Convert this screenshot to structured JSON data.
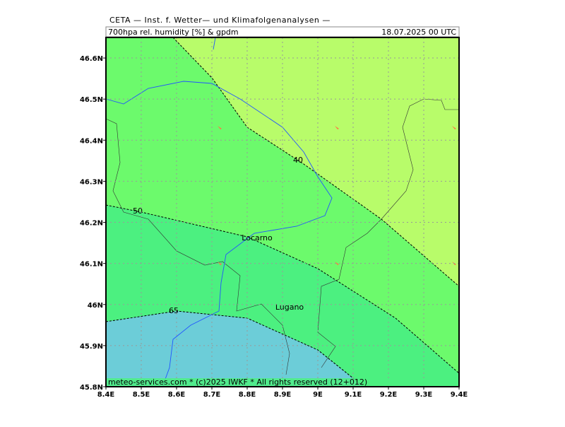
{
  "header": {
    "institution": "CETA — Inst. f. Wetter— und Klimafolgenanalysen —",
    "product": "700hpa rel. humidity [%] & gpdm",
    "valid_time": "18.07.2025 00 UTC"
  },
  "map": {
    "xlim": [
      8.4,
      9.4
    ],
    "ylim": [
      45.8,
      46.65
    ],
    "xticks": [
      {
        "value": 8.4,
        "label": "8.4E"
      },
      {
        "value": 8.5,
        "label": "8.5E"
      },
      {
        "value": 8.6,
        "label": "8.6E"
      },
      {
        "value": 8.7,
        "label": "8.7E"
      },
      {
        "value": 8.8,
        "label": "8.8E"
      },
      {
        "value": 8.9,
        "label": "8.9E"
      },
      {
        "value": 9,
        "label": "9E"
      },
      {
        "value": 9.1,
        "label": "9.1E"
      },
      {
        "value": 9.2,
        "label": "9.2E"
      },
      {
        "value": 9.3,
        "label": "9.3E"
      },
      {
        "value": 9.4,
        "label": "9.4E"
      }
    ],
    "yticks": [
      {
        "value": 45.8,
        "label": "45.8N"
      },
      {
        "value": 45.9,
        "label": "45.9N"
      },
      {
        "value": 46,
        "label": "46N"
      },
      {
        "value": 46.1,
        "label": "46.1N"
      },
      {
        "value": 46.2,
        "label": "46.2N"
      },
      {
        "value": 46.3,
        "label": "46.3N"
      },
      {
        "value": 46.4,
        "label": "46.4N"
      },
      {
        "value": 46.5,
        "label": "46.5N"
      },
      {
        "value": 46.6,
        "label": "46.6N"
      }
    ],
    "grid": true,
    "contour_labels": [
      40,
      50,
      65
    ],
    "places": [
      "Locarno",
      "Lugano"
    ],
    "footer": "meteo-services.com * (c)2025 IWKF * All rights reserved (12+012)"
  }
}
